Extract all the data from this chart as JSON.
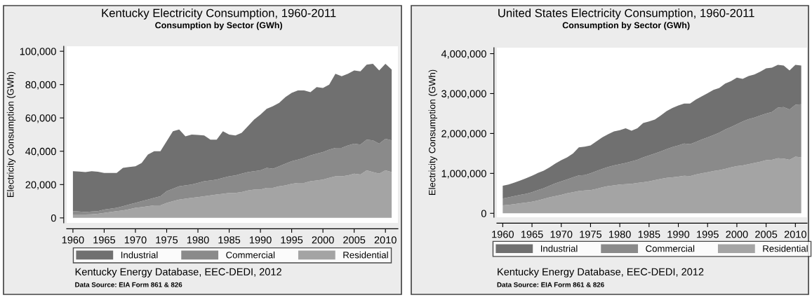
{
  "chart_data": [
    {
      "type": "area",
      "stacked": true,
      "title": "Kentucky Electricity Consumption, 1960-2011",
      "subtitle": "Consumption by Sector (GWh)",
      "ylabel": "Electricity Consumption (GWh)",
      "x": [
        1960,
        1961,
        1962,
        1963,
        1964,
        1965,
        1966,
        1967,
        1968,
        1969,
        1970,
        1971,
        1972,
        1973,
        1974,
        1975,
        1976,
        1977,
        1978,
        1979,
        1980,
        1981,
        1982,
        1983,
        1984,
        1985,
        1986,
        1987,
        1988,
        1989,
        1990,
        1991,
        1992,
        1993,
        1994,
        1995,
        1996,
        1997,
        1998,
        1999,
        2000,
        2001,
        2002,
        2003,
        2004,
        2005,
        2006,
        2007,
        2008,
        2009,
        2010,
        2011
      ],
      "xlim": [
        1959,
        2012
      ],
      "xticks": [
        1960,
        1965,
        1970,
        1975,
        1980,
        1985,
        1990,
        1995,
        2000,
        2005,
        2010
      ],
      "ylim": [
        -3000,
        103000
      ],
      "yticks": [
        {
          "value": 0,
          "label": "0"
        },
        {
          "value": 20000,
          "label": "20,000"
        },
        {
          "value": 40000,
          "label": "40,000"
        },
        {
          "value": 60000,
          "label": "60,000"
        },
        {
          "value": 80000,
          "label": "80,000"
        },
        {
          "value": 100000,
          "label": "100,000"
        }
      ],
      "legend": "bottom",
      "grid": false,
      "series": [
        {
          "name": "Residential",
          "color": "#a4a4a4",
          "values": [
            2000,
            2000,
            2000,
            2200,
            2500,
            3000,
            3500,
            4000,
            4500,
            5200,
            6000,
            6500,
            7000,
            7500,
            7500,
            9000,
            10000,
            11000,
            11500,
            12000,
            12500,
            13000,
            13500,
            14000,
            14500,
            15000,
            15000,
            15500,
            16500,
            17000,
            17000,
            18000,
            18000,
            19000,
            19500,
            20500,
            21000,
            21000,
            22000,
            22500,
            23000,
            24000,
            25000,
            25000,
            25500,
            26500,
            26000,
            28500,
            27500,
            26500,
            28500,
            27500
          ]
        },
        {
          "name": "Commercial",
          "color": "#8a8a8a",
          "values": [
            2000,
            1800,
            1500,
            1600,
            1500,
            2000,
            2000,
            2000,
            2500,
            2800,
            3000,
            3500,
            4000,
            4500,
            5500,
            7000,
            7500,
            8000,
            8000,
            8000,
            8500,
            9000,
            9000,
            9000,
            9500,
            10000,
            10500,
            11000,
            11000,
            11000,
            11500,
            12000,
            11500,
            12000,
            13000,
            13500,
            14000,
            15000,
            15500,
            16000,
            16500,
            17000,
            17000,
            17000,
            18000,
            18000,
            18000,
            18500,
            19000,
            18000,
            19000,
            19000
          ]
        },
        {
          "name": "Industrial",
          "color": "#707070",
          "values": [
            24000,
            24000,
            24000,
            24200,
            23700,
            22000,
            21500,
            21000,
            23000,
            22500,
            22000,
            23000,
            27000,
            28000,
            27000,
            30000,
            34500,
            34000,
            29500,
            30000,
            28800,
            27500,
            24500,
            24000,
            28000,
            25000,
            24000,
            24500,
            27500,
            31000,
            33500,
            35500,
            37500,
            38000,
            40000,
            41000,
            41500,
            40500,
            38000,
            40000,
            38500,
            39000,
            44500,
            43000,
            43000,
            44000,
            44000,
            45000,
            46000,
            44000,
            45000,
            42500
          ]
        }
      ],
      "annotations": [
        "Kentucky Energy Database, EEC-DEDI, 2012",
        "Data Source: EIA Form 861 & 826"
      ]
    },
    {
      "type": "area",
      "stacked": true,
      "title": "United States Electricity Consumption, 1960-2011",
      "subtitle": "Consumption by Sector (GWh)",
      "ylabel": "Electricity Consumption (GWh)",
      "x": [
        1960,
        1961,
        1962,
        1963,
        1964,
        1965,
        1966,
        1967,
        1968,
        1969,
        1970,
        1971,
        1972,
        1973,
        1974,
        1975,
        1976,
        1977,
        1978,
        1979,
        1980,
        1981,
        1982,
        1983,
        1984,
        1985,
        1986,
        1987,
        1988,
        1989,
        1990,
        1991,
        1992,
        1993,
        1994,
        1995,
        1996,
        1997,
        1998,
        1999,
        2000,
        2001,
        2002,
        2003,
        2004,
        2005,
        2006,
        2007,
        2008,
        2009,
        2010,
        2011
      ],
      "xlim": [
        1959,
        2012
      ],
      "xticks": [
        1960,
        1965,
        1970,
        1975,
        1980,
        1985,
        1990,
        1995,
        2000,
        2005,
        2010
      ],
      "ylim": [
        -100000,
        4150000
      ],
      "yticks": [
        {
          "value": 0,
          "label": "0"
        },
        {
          "value": 1000000,
          "label": "1,000,000"
        },
        {
          "value": 2000000,
          "label": "2,000,000"
        },
        {
          "value": 3000000,
          "label": "3,000,000"
        },
        {
          "value": 4000000,
          "label": "4,000,000"
        }
      ],
      "legend": "bottom",
      "grid": false,
      "series": [
        {
          "name": "Residential",
          "color": "#a4a4a4",
          "values": [
            200000,
            210000,
            230000,
            250000,
            270000,
            290000,
            320000,
            360000,
            400000,
            430000,
            460000,
            500000,
            530000,
            560000,
            570000,
            580000,
            610000,
            650000,
            680000,
            700000,
            720000,
            730000,
            740000,
            760000,
            780000,
            800000,
            830000,
            860000,
            890000,
            900000,
            920000,
            940000,
            930000,
            970000,
            1000000,
            1030000,
            1060000,
            1080000,
            1110000,
            1150000,
            1180000,
            1200000,
            1230000,
            1260000,
            1290000,
            1330000,
            1340000,
            1380000,
            1370000,
            1340000,
            1420000,
            1400000
          ]
        },
        {
          "name": "Commercial",
          "color": "#8a8a8a",
          "values": [
            170000,
            190000,
            200000,
            210000,
            220000,
            240000,
            260000,
            270000,
            290000,
            320000,
            340000,
            350000,
            370000,
            390000,
            390000,
            420000,
            450000,
            460000,
            480000,
            500000,
            510000,
            530000,
            560000,
            580000,
            620000,
            650000,
            670000,
            690000,
            720000,
            760000,
            780000,
            810000,
            800000,
            820000,
            850000,
            870000,
            900000,
            940000,
            990000,
            1010000,
            1050000,
            1100000,
            1130000,
            1140000,
            1160000,
            1170000,
            1200000,
            1270000,
            1290000,
            1260000,
            1300000,
            1330000
          ]
        },
        {
          "name": "Industrial",
          "color": "#707070",
          "values": [
            320000,
            320000,
            340000,
            360000,
            390000,
            410000,
            430000,
            440000,
            460000,
            500000,
            530000,
            550000,
            600000,
            700000,
            710000,
            700000,
            740000,
            790000,
            820000,
            850000,
            850000,
            870000,
            770000,
            790000,
            860000,
            850000,
            850000,
            900000,
            950000,
            980000,
            1000000,
            1000000,
            1020000,
            1060000,
            1080000,
            1110000,
            1130000,
            1120000,
            1150000,
            1150000,
            1170000,
            1070000,
            1080000,
            1080000,
            1100000,
            1130000,
            1110000,
            1070000,
            1040000,
            980000,
            1000000,
            970000
          ]
        }
      ],
      "annotations": [
        "Kentucky Energy Database, EEC-DEDI, 2012",
        "Data Source: EIA Form 861 & 826"
      ]
    }
  ]
}
